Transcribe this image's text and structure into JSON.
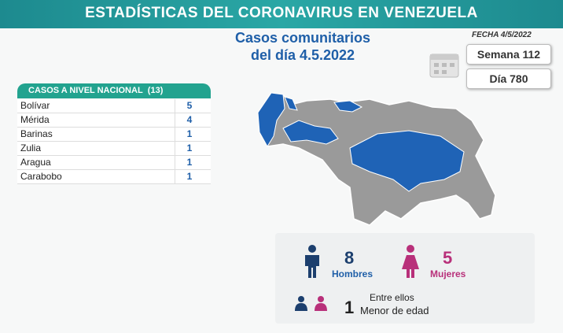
{
  "header": {
    "title": "ESTADÍSTICAS DEL CORONAVIRUS EN VENEZUELA",
    "subtitle_line1": "Casos comunitarios",
    "subtitle_line2": "del día 4.5.2022",
    "date": "FECHA 4/5/2022",
    "week": "Semana 112",
    "day": "Día 780"
  },
  "table": {
    "title": "CASOS A NIVEL NACIONAL",
    "total": "(13)",
    "rows": [
      [
        "Bolívar",
        5
      ],
      [
        "Mérida",
        4
      ],
      [
        "Barinas",
        1
      ],
      [
        "Zulia",
        1
      ],
      [
        "Aragua",
        1
      ],
      [
        "Carabobo",
        1
      ]
    ]
  },
  "gender": {
    "men_count": 8,
    "men_label": "Hombres",
    "women_count": 5,
    "women_label": "Mujeres",
    "among_label": "Entre ellos",
    "minors_count": 1,
    "minors_label": "Menor de edad"
  }
}
